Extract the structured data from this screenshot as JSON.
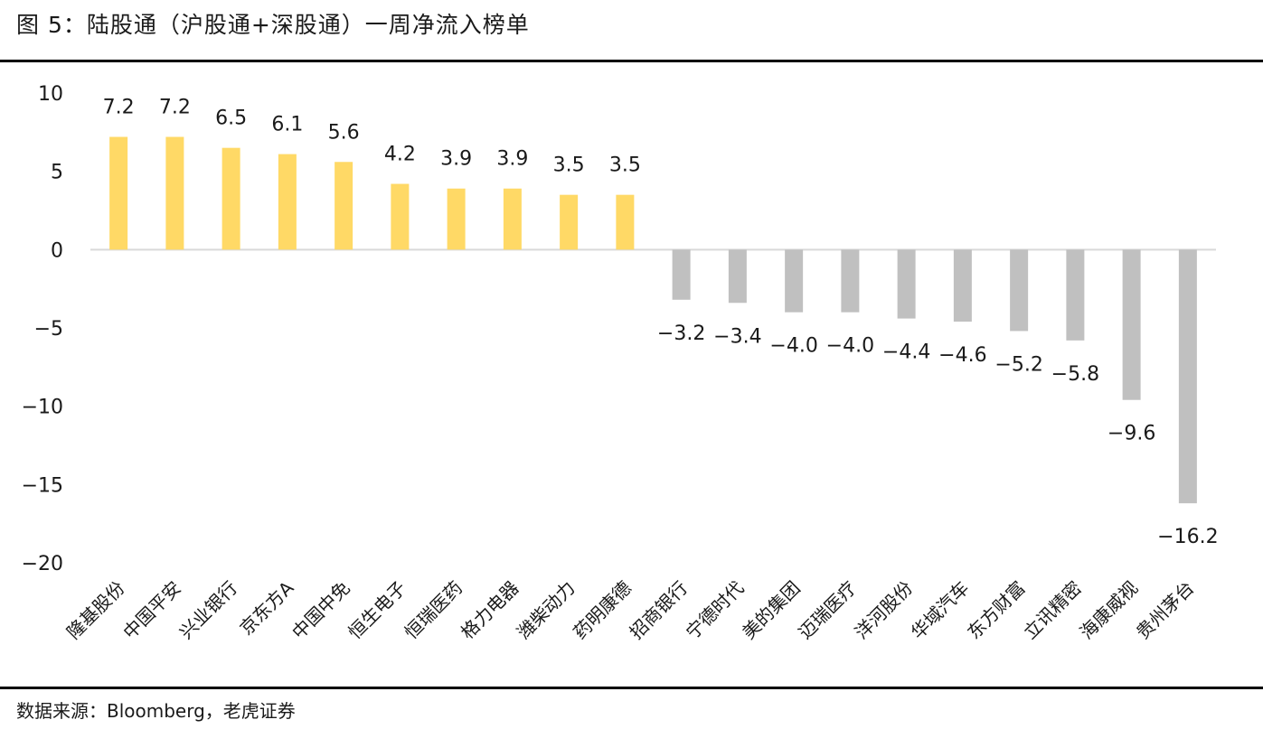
{
  "title": "图 5：陆股通（沪股通+深股通）一周净流入榜单",
  "source": "数据来源：Bloomberg，老虎证券",
  "colors": {
    "positive": "#FFD966",
    "negative": "#C0C0C0",
    "axis": "#D9D9D9",
    "text": "#1a1a1a"
  },
  "chart_data": {
    "type": "bar",
    "title": "",
    "xlabel": "",
    "ylabel": "",
    "ylim": [
      -20,
      10
    ],
    "yticks": [
      {
        "value": 10,
        "label": "10"
      },
      {
        "value": 5,
        "label": "5"
      },
      {
        "value": 0,
        "label": "0"
      },
      {
        "value": -5,
        "label": "−5"
      },
      {
        "value": -10,
        "label": "−10"
      },
      {
        "value": -15,
        "label": "−15"
      },
      {
        "value": -20,
        "label": "−20"
      }
    ],
    "grid": false,
    "legend": "none",
    "categories": [
      "隆基股份",
      "中国平安",
      "兴业银行",
      "京东方A",
      "中国中免",
      "恒生电子",
      "恒瑞医药",
      "格力电器",
      "潍柴动力",
      "药明康德",
      "招商银行",
      "宁德时代",
      "美的集团",
      "迈瑞医疗",
      "洋河股份",
      "华域汽车",
      "东方财富",
      "立讯精密",
      "海康威视",
      "贵州茅台"
    ],
    "values": [
      7.2,
      7.2,
      6.5,
      6.1,
      5.6,
      4.2,
      3.9,
      3.9,
      3.5,
      3.5,
      -3.2,
      -3.4,
      -4.0,
      -4.0,
      -4.4,
      -4.6,
      -5.2,
      -5.8,
      -9.6,
      -16.2
    ],
    "value_labels": [
      "7.2",
      "7.2",
      "6.5",
      "6.1",
      "5.6",
      "4.2",
      "3.9",
      "3.9",
      "3.5",
      "3.5",
      "−3.2",
      "−3.4",
      "−4.0",
      "−4.0",
      "−4.4",
      "−4.6",
      "−5.2",
      "−5.8",
      "−9.6",
      "−16.2"
    ]
  }
}
